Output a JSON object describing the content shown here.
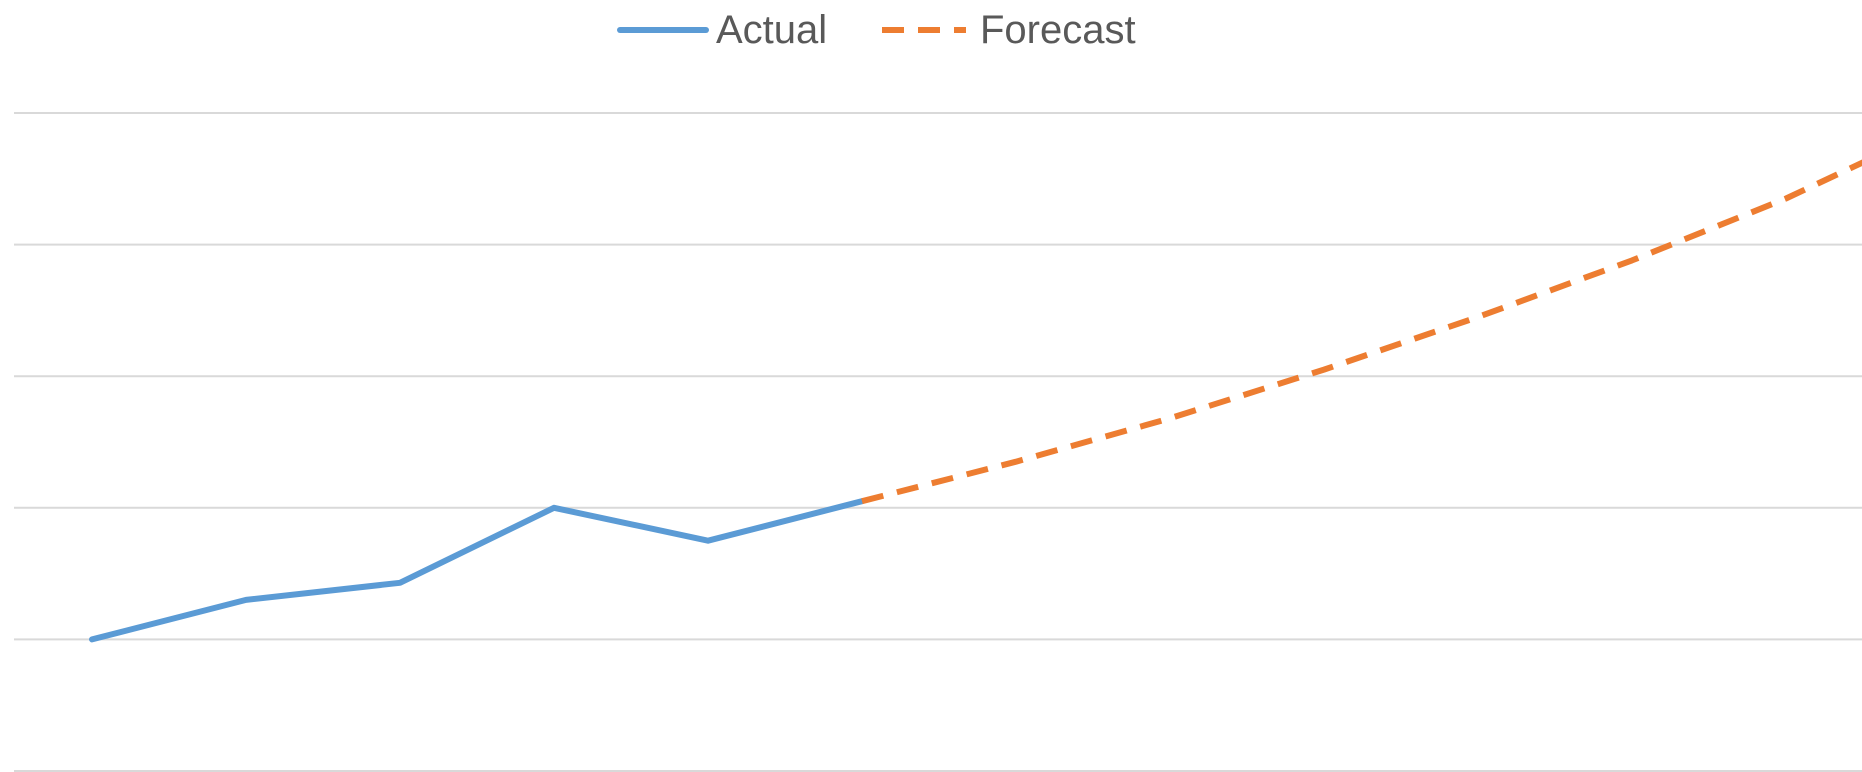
{
  "chart_data": {
    "type": "line",
    "title": "",
    "xlabel": "",
    "ylabel": "",
    "x": [
      1,
      2,
      3,
      4,
      5,
      6,
      7,
      8,
      9,
      10,
      11,
      12,
      13
    ],
    "ylim": [
      0,
      5
    ],
    "grid": true,
    "legend_position": "top-center",
    "series": [
      {
        "name": "Actual",
        "x": [
          1,
          2,
          3,
          4,
          5,
          6
        ],
        "values": [
          1.0,
          1.3,
          1.43,
          2.0,
          1.75,
          2.05
        ],
        "color": "#5B9BD5",
        "style": "solid"
      },
      {
        "name": "Forecast",
        "x": [
          6,
          7,
          8,
          9,
          10,
          11,
          12,
          13
        ],
        "values": [
          2.05,
          2.35,
          2.68,
          3.05,
          3.45,
          3.88,
          4.35,
          4.9
        ],
        "color": "#ED7D31",
        "style": "dashed"
      }
    ]
  }
}
